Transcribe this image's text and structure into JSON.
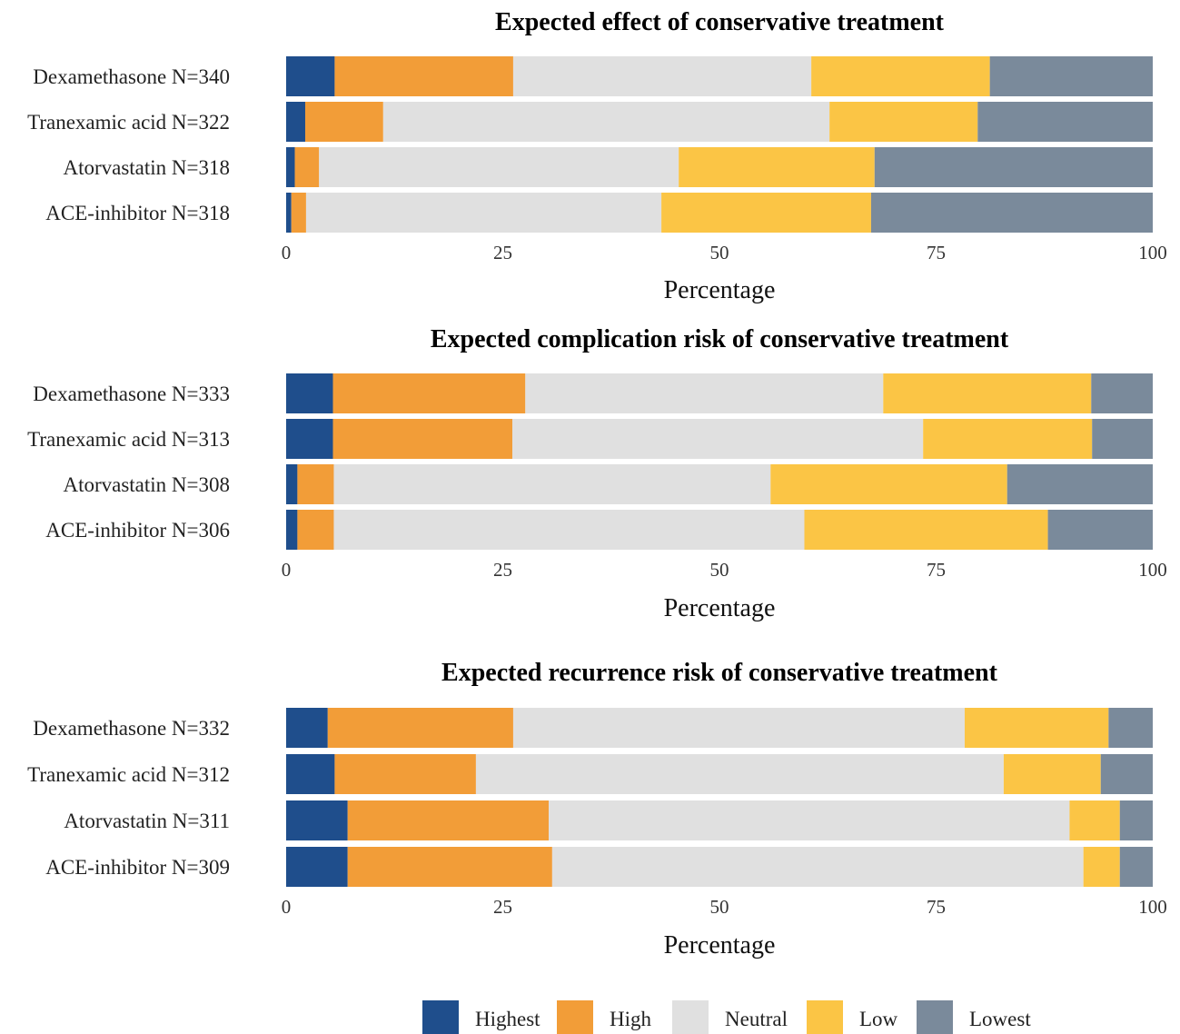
{
  "legend": {
    "items": [
      {
        "key": "highest",
        "label": "Highest",
        "color": "#1f4e8c"
      },
      {
        "key": "high",
        "label": "High",
        "color": "#f29d38"
      },
      {
        "key": "neutral",
        "label": "Neutral",
        "color": "#e0e0e0"
      },
      {
        "key": "low",
        "label": "Low",
        "color": "#fbc545"
      },
      {
        "key": "lowest",
        "label": "Lowest",
        "color": "#7a8a9b"
      }
    ],
    "placement": "bottom"
  },
  "chart_data": [
    {
      "type": "bar",
      "orientation": "horizontal",
      "stacked": true,
      "title": "Expected effect of conservative treatment",
      "xlabel": "Percentage",
      "xlim": [
        0,
        100
      ],
      "xticks": [
        "0",
        "25",
        "50",
        "75",
        "100"
      ],
      "categories": [
        "Dexamethasone N=340",
        "Tranexamic acid N=322",
        "Atorvastatin N=318",
        "ACE-inhibitor N=318"
      ],
      "series": [
        {
          "name": "Highest",
          "values": [
            5.6,
            2.2,
            1.0,
            0.6
          ]
        },
        {
          "name": "High",
          "values": [
            20.6,
            9.0,
            2.8,
            1.7
          ]
        },
        {
          "name": "Neutral",
          "values": [
            34.4,
            51.5,
            41.5,
            41.0
          ]
        },
        {
          "name": "Low",
          "values": [
            20.6,
            17.1,
            22.6,
            24.2
          ]
        },
        {
          "name": "Lowest",
          "values": [
            18.8,
            20.2,
            32.1,
            32.5
          ]
        }
      ]
    },
    {
      "type": "bar",
      "orientation": "horizontal",
      "stacked": true,
      "title": "Expected complication risk of conservative treatment",
      "xlabel": "Percentage",
      "xlim": [
        0,
        100
      ],
      "xticks": [
        "0",
        "25",
        "50",
        "75",
        "100"
      ],
      "categories": [
        "Dexamethasone N=333",
        "Tranexamic acid N=313",
        "Atorvastatin N=308",
        "ACE-inhibitor N=306"
      ],
      "series": [
        {
          "name": "Highest",
          "values": [
            5.4,
            5.4,
            1.3,
            1.3
          ]
        },
        {
          "name": "High",
          "values": [
            22.2,
            20.7,
            4.2,
            4.2
          ]
        },
        {
          "name": "Neutral",
          "values": [
            41.3,
            47.4,
            50.4,
            54.3
          ]
        },
        {
          "name": "Low",
          "values": [
            24.0,
            19.5,
            27.3,
            28.1
          ]
        },
        {
          "name": "Lowest",
          "values": [
            7.1,
            7.0,
            16.8,
            12.1
          ]
        }
      ]
    },
    {
      "type": "bar",
      "orientation": "horizontal",
      "stacked": true,
      "title": "Expected recurrence risk of conservative treatment",
      "xlabel": "Percentage",
      "xlim": [
        0,
        100
      ],
      "xticks": [
        "0",
        "25",
        "50",
        "75",
        "100"
      ],
      "categories": [
        "Dexamethasone N=332",
        "Tranexamic acid N=312",
        "Atorvastatin N=311",
        "ACE-inhibitor N=309"
      ],
      "series": [
        {
          "name": "Highest",
          "values": [
            4.8,
            5.6,
            7.1,
            7.1
          ]
        },
        {
          "name": "High",
          "values": [
            21.4,
            16.3,
            23.2,
            23.6
          ]
        },
        {
          "name": "Neutral",
          "values": [
            52.1,
            60.9,
            60.1,
            61.3
          ]
        },
        {
          "name": "Low",
          "values": [
            16.6,
            11.2,
            5.8,
            4.2
          ]
        },
        {
          "name": "Lowest",
          "values": [
            5.1,
            6.0,
            3.8,
            3.8
          ]
        }
      ]
    }
  ]
}
